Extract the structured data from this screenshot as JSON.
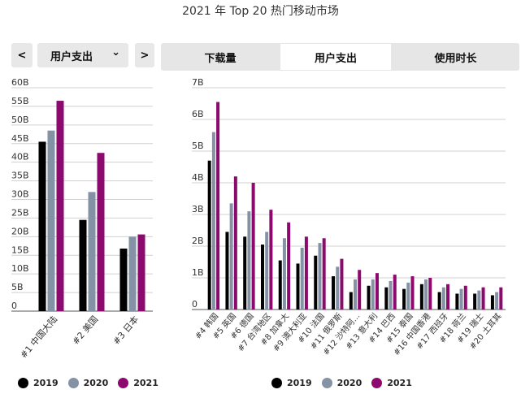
{
  "title": "2021 年 Top 20 热门移动市场",
  "controls": {
    "prev_label": "<",
    "next_label": ">",
    "dropdown_value": "用户支出",
    "dropdown_caret": "⌄"
  },
  "tabs": [
    {
      "label": "下载量",
      "active": false
    },
    {
      "label": "用户支出",
      "active": true
    },
    {
      "label": "使用时长",
      "active": false
    }
  ],
  "colors": {
    "2019": "#000000",
    "2020": "#8492a6",
    "2021": "#8c0a6e",
    "grid": "#d0d0d0"
  },
  "chart_data": [
    {
      "type": "bar",
      "categories": [
        "#1 中国大陆",
        "#2 美国",
        "#3 日本"
      ],
      "series": [
        {
          "name": "2019",
          "values": [
            45.5,
            24.5,
            16.8
          ]
        },
        {
          "name": "2020",
          "values": [
            48.5,
            32.0,
            20.0
          ]
        },
        {
          "name": "2021",
          "values": [
            56.5,
            42.5,
            20.6
          ]
        }
      ],
      "y_ticks": [
        "0",
        "5B",
        "10B",
        "15B",
        "20B",
        "25B",
        "30B",
        "35B",
        "40B",
        "45B",
        "50B",
        "55B",
        "60B"
      ],
      "ylim": [
        0,
        60
      ],
      "ylabel": "",
      "grid": true
    },
    {
      "type": "bar",
      "categories": [
        "#4 韩国",
        "#5 英国",
        "#6 德国",
        "#7 台湾地区",
        "#8 加拿大",
        "#9 澳大利亚",
        "#10 法国",
        "#11 俄罗斯",
        "#12 沙特阿...",
        "#13 意大利",
        "#14 巴西",
        "#15 泰国",
        "#16 中国香港",
        "#17 西班牙",
        "#18 荷兰",
        "#19 瑞士",
        "#20 土耳其"
      ],
      "series": [
        {
          "name": "2019",
          "values": [
            4.7,
            2.45,
            2.3,
            2.05,
            1.55,
            1.45,
            1.7,
            1.05,
            0.55,
            0.75,
            0.7,
            0.65,
            0.8,
            0.55,
            0.5,
            0.5,
            0.45
          ]
        },
        {
          "name": "2020",
          "values": [
            5.6,
            3.35,
            3.1,
            2.45,
            2.25,
            1.95,
            2.1,
            1.35,
            0.95,
            0.95,
            0.9,
            0.85,
            0.95,
            0.7,
            0.65,
            0.6,
            0.55
          ]
        },
        {
          "name": "2021",
          "values": [
            6.55,
            4.2,
            4.0,
            3.15,
            2.75,
            2.3,
            2.25,
            1.6,
            1.25,
            1.15,
            1.1,
            1.05,
            1.0,
            0.8,
            0.75,
            0.7,
            0.7
          ]
        }
      ],
      "y_ticks": [
        "0",
        "1B",
        "2B",
        "3B",
        "4B",
        "5B",
        "6B",
        "7B"
      ],
      "ylim": [
        0,
        7
      ],
      "ylabel": "",
      "grid": true
    }
  ],
  "legend": [
    {
      "label": "2019",
      "color": "#000000"
    },
    {
      "label": "2020",
      "color": "#8492a6"
    },
    {
      "label": "2021",
      "color": "#8c0a6e"
    }
  ]
}
